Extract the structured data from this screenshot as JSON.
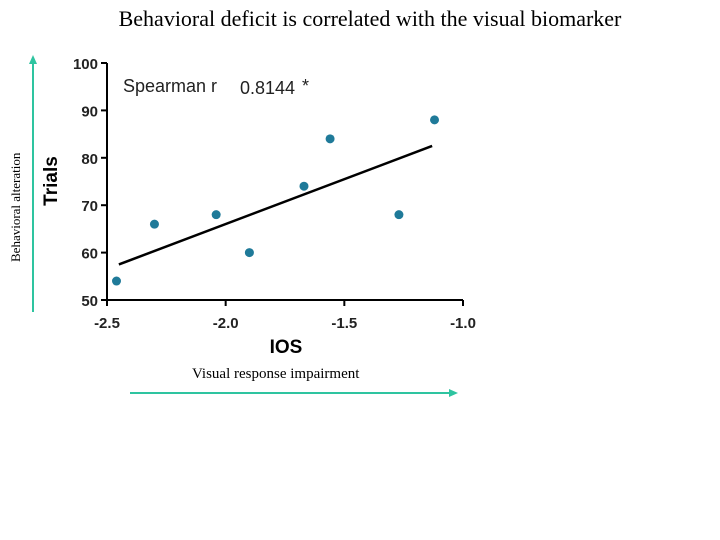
{
  "slide": {
    "title": "Behavioral deficit is correlated with the visual biomarker",
    "side_label": "Behavioral alteration",
    "bottom_label": "Visual response impairment"
  },
  "colors": {
    "point": "#1f7a99",
    "arrow": "#2ec4a0",
    "line": "#000000"
  },
  "chart_data": {
    "type": "scatter",
    "title": "",
    "xlabel": "IOS",
    "ylabel": "Trials",
    "xlim": [
      -2.5,
      -1.0
    ],
    "ylim": [
      50,
      100
    ],
    "xticks": [
      "-2.5",
      "-2.0",
      "-1.5",
      "-1.0"
    ],
    "yticks": [
      "50",
      "60",
      "70",
      "80",
      "90",
      "100"
    ],
    "grid": false,
    "points": [
      {
        "x": -2.46,
        "y": 54
      },
      {
        "x": -2.3,
        "y": 66
      },
      {
        "x": -2.04,
        "y": 68
      },
      {
        "x": -1.9,
        "y": 60
      },
      {
        "x": -1.67,
        "y": 74
      },
      {
        "x": -1.56,
        "y": 84
      },
      {
        "x": -1.27,
        "y": 68
      },
      {
        "x": -1.12,
        "y": 88
      }
    ],
    "fit_line": {
      "x": [
        -2.45,
        -1.13
      ],
      "y": [
        57.5,
        82.5
      ]
    },
    "annotation": {
      "label": "Spearman r",
      "value": "0.8144",
      "significance": "*"
    }
  }
}
